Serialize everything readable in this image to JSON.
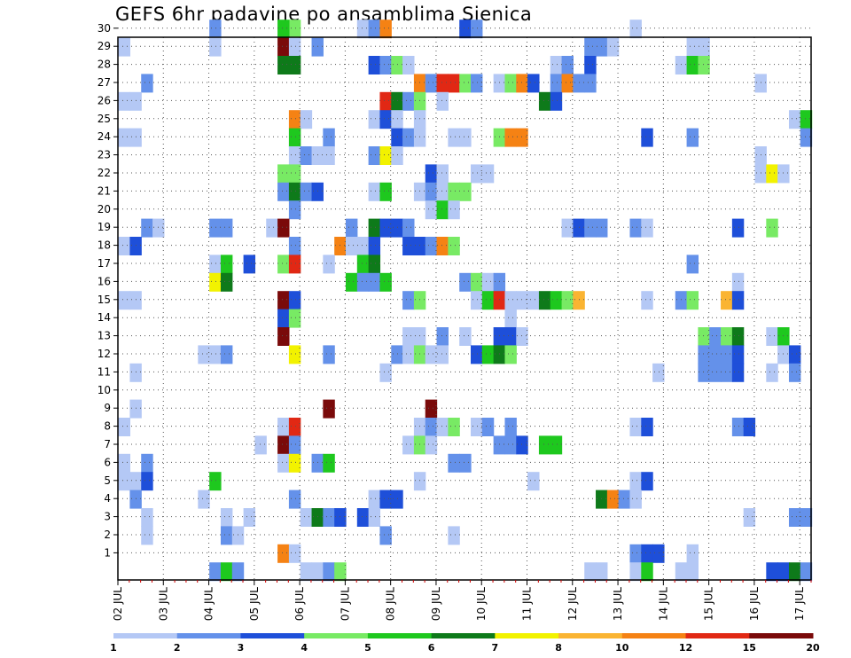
{
  "title": "GEFS 6hr padavine po ansamblima Sjenica",
  "chart_data": {
    "type": "heatmap",
    "title": "GEFS 6hr padavine po ansamblima Sjenica",
    "ylim": [
      0,
      30
    ],
    "yticks": [
      1,
      2,
      3,
      4,
      5,
      6,
      7,
      8,
      9,
      10,
      11,
      12,
      13,
      14,
      15,
      16,
      17,
      18,
      19,
      20,
      21,
      22,
      23,
      24,
      25,
      26,
      27,
      28,
      29,
      30
    ],
    "xlim": [
      0,
      61
    ],
    "xticks": [
      {
        "label": "02 JUL",
        "pos": 0
      },
      {
        "label": "03 JUL",
        "pos": 4
      },
      {
        "label": "04 JUL",
        "pos": 8
      },
      {
        "label": "05 JUL",
        "pos": 12
      },
      {
        "label": "06 JUL",
        "pos": 16
      },
      {
        "label": "07 JUL",
        "pos": 20
      },
      {
        "label": "08 JUL",
        "pos": 24
      },
      {
        "label": "09 JUL",
        "pos": 28
      },
      {
        "label": "10 JUL",
        "pos": 32
      },
      {
        "label": "11 JUL",
        "pos": 36
      },
      {
        "label": "12 JUL",
        "pos": 40
      },
      {
        "label": "13 JUL",
        "pos": 44
      },
      {
        "label": "14 JUL",
        "pos": 48
      },
      {
        "label": "15 JUL",
        "pos": 52
      },
      {
        "label": "16 JUL",
        "pos": 56
      },
      {
        "label": "17 JUL",
        "pos": 60
      }
    ],
    "grid": true,
    "colorbar": {
      "labels": [
        "1",
        "2",
        "3",
        "4",
        "5",
        "6",
        "7",
        "8",
        "10",
        "12",
        "15",
        "20"
      ],
      "colors": [
        "#b4c8f5",
        "#6491ea",
        "#1e4fd9",
        "#78ea64",
        "#1ec81e",
        "#0e7a1a",
        "#f2f200",
        "#fab432",
        "#f58214",
        "#e12814",
        "#7a0a0a"
      ]
    },
    "cells": [
      [
        8,
        30,
        1
      ],
      [
        15,
        30,
        3
      ],
      [
        14,
        30,
        4
      ],
      [
        21,
        30,
        0
      ],
      [
        22,
        30,
        1
      ],
      [
        23,
        30,
        8
      ],
      [
        30,
        30,
        2
      ],
      [
        31,
        30,
        1
      ],
      [
        45,
        30,
        0
      ],
      [
        0,
        29,
        0
      ],
      [
        8,
        29,
        0
      ],
      [
        14,
        29,
        10
      ],
      [
        15,
        29,
        0
      ],
      [
        17,
        29,
        1
      ],
      [
        41,
        29,
        1
      ],
      [
        42,
        29,
        1
      ],
      [
        43,
        29,
        0
      ],
      [
        50,
        29,
        0
      ],
      [
        51,
        29,
        0
      ],
      [
        14,
        28,
        5
      ],
      [
        15,
        28,
        5
      ],
      [
        22,
        28,
        2
      ],
      [
        23,
        28,
        1
      ],
      [
        24,
        28,
        3
      ],
      [
        25,
        28,
        0
      ],
      [
        38,
        28,
        0
      ],
      [
        39,
        28,
        1
      ],
      [
        41,
        28,
        2
      ],
      [
        49,
        28,
        0
      ],
      [
        50,
        28,
        4
      ],
      [
        51,
        28,
        3
      ],
      [
        2,
        27,
        1
      ],
      [
        26,
        27,
        8
      ],
      [
        27,
        27,
        1
      ],
      [
        28,
        27,
        9
      ],
      [
        29,
        27,
        9
      ],
      [
        30,
        27,
        3
      ],
      [
        31,
        27,
        1
      ],
      [
        33,
        27,
        0
      ],
      [
        34,
        27,
        3
      ],
      [
        35,
        27,
        8
      ],
      [
        36,
        27,
        2
      ],
      [
        38,
        27,
        1
      ],
      [
        39,
        27,
        8
      ],
      [
        40,
        27,
        1
      ],
      [
        41,
        27,
        1
      ],
      [
        56,
        27,
        0
      ],
      [
        0,
        26,
        0
      ],
      [
        1,
        26,
        0
      ],
      [
        23,
        26,
        9
      ],
      [
        24,
        26,
        5
      ],
      [
        25,
        26,
        1
      ],
      [
        26,
        26,
        3
      ],
      [
        28,
        26,
        0
      ],
      [
        37,
        26,
        5
      ],
      [
        38,
        26,
        2
      ],
      [
        15,
        25,
        8
      ],
      [
        16,
        25,
        0
      ],
      [
        22,
        25,
        0
      ],
      [
        23,
        25,
        2
      ],
      [
        24,
        25,
        0
      ],
      [
        26,
        25,
        0
      ],
      [
        59,
        25,
        0
      ],
      [
        60,
        25,
        4
      ],
      [
        0,
        24,
        0
      ],
      [
        1,
        24,
        0
      ],
      [
        15,
        24,
        4
      ],
      [
        18,
        24,
        1
      ],
      [
        24,
        24,
        2
      ],
      [
        25,
        24,
        1
      ],
      [
        26,
        24,
        0
      ],
      [
        29,
        24,
        0
      ],
      [
        30,
        24,
        0
      ],
      [
        33,
        24,
        3
      ],
      [
        34,
        24,
        8
      ],
      [
        35,
        24,
        8
      ],
      [
        46,
        24,
        2
      ],
      [
        50,
        24,
        1
      ],
      [
        60,
        24,
        1
      ],
      [
        15,
        23,
        0
      ],
      [
        16,
        23,
        1
      ],
      [
        17,
        23,
        0
      ],
      [
        18,
        23,
        0
      ],
      [
        22,
        23,
        1
      ],
      [
        23,
        23,
        6
      ],
      [
        24,
        23,
        0
      ],
      [
        56,
        23,
        0
      ],
      [
        14,
        22,
        3
      ],
      [
        15,
        22,
        3
      ],
      [
        27,
        22,
        2
      ],
      [
        28,
        22,
        0
      ],
      [
        31,
        22,
        0
      ],
      [
        32,
        22,
        0
      ],
      [
        56,
        22,
        0
      ],
      [
        57,
        22,
        6
      ],
      [
        58,
        22,
        0
      ],
      [
        14,
        21,
        1
      ],
      [
        15,
        21,
        5
      ],
      [
        16,
        21,
        1
      ],
      [
        17,
        21,
        2
      ],
      [
        22,
        21,
        0
      ],
      [
        23,
        21,
        4
      ],
      [
        26,
        21,
        0
      ],
      [
        27,
        21,
        1
      ],
      [
        28,
        21,
        0
      ],
      [
        29,
        21,
        3
      ],
      [
        30,
        21,
        3
      ],
      [
        15,
        20,
        1
      ],
      [
        27,
        20,
        0
      ],
      [
        28,
        20,
        4
      ],
      [
        29,
        20,
        0
      ],
      [
        2,
        19,
        1
      ],
      [
        3,
        19,
        0
      ],
      [
        8,
        19,
        1
      ],
      [
        9,
        19,
        1
      ],
      [
        13,
        19,
        0
      ],
      [
        14,
        19,
        10
      ],
      [
        20,
        19,
        1
      ],
      [
        22,
        19,
        5
      ],
      [
        23,
        19,
        2
      ],
      [
        24,
        19,
        2
      ],
      [
        25,
        19,
        1
      ],
      [
        39,
        19,
        0
      ],
      [
        40,
        19,
        2
      ],
      [
        41,
        19,
        1
      ],
      [
        42,
        19,
        1
      ],
      [
        45,
        19,
        1
      ],
      [
        46,
        19,
        0
      ],
      [
        54,
        19,
        2
      ],
      [
        57,
        19,
        3
      ],
      [
        0,
        18,
        0
      ],
      [
        1,
        18,
        2
      ],
      [
        15,
        18,
        1
      ],
      [
        19,
        18,
        8
      ],
      [
        20,
        18,
        0
      ],
      [
        21,
        18,
        0
      ],
      [
        22,
        18,
        2
      ],
      [
        25,
        18,
        2
      ],
      [
        26,
        18,
        2
      ],
      [
        27,
        18,
        1
      ],
      [
        28,
        18,
        8
      ],
      [
        29,
        18,
        3
      ],
      [
        8,
        17,
        0
      ],
      [
        9,
        17,
        4
      ],
      [
        11,
        17,
        2
      ],
      [
        14,
        17,
        3
      ],
      [
        15,
        17,
        9
      ],
      [
        18,
        17,
        0
      ],
      [
        21,
        17,
        4
      ],
      [
        22,
        17,
        5
      ],
      [
        50,
        17,
        1
      ],
      [
        8,
        16,
        6
      ],
      [
        9,
        16,
        5
      ],
      [
        20,
        16,
        4
      ],
      [
        21,
        16,
        1
      ],
      [
        22,
        16,
        1
      ],
      [
        23,
        16,
        4
      ],
      [
        30,
        16,
        1
      ],
      [
        31,
        16,
        3
      ],
      [
        32,
        16,
        0
      ],
      [
        33,
        16,
        1
      ],
      [
        54,
        16,
        0
      ],
      [
        0,
        15,
        0
      ],
      [
        1,
        15,
        0
      ],
      [
        14,
        15,
        10
      ],
      [
        15,
        15,
        2
      ],
      [
        25,
        15,
        1
      ],
      [
        26,
        15,
        3
      ],
      [
        31,
        15,
        0
      ],
      [
        32,
        15,
        4
      ],
      [
        33,
        15,
        9
      ],
      [
        34,
        15,
        0
      ],
      [
        35,
        15,
        0
      ],
      [
        36,
        15,
        0
      ],
      [
        37,
        15,
        5
      ],
      [
        38,
        15,
        4
      ],
      [
        39,
        15,
        3
      ],
      [
        40,
        15,
        7
      ],
      [
        46,
        15,
        0
      ],
      [
        49,
        15,
        1
      ],
      [
        50,
        15,
        3
      ],
      [
        53,
        15,
        7
      ],
      [
        54,
        15,
        2
      ],
      [
        14,
        14,
        2
      ],
      [
        15,
        14,
        3
      ],
      [
        34,
        14,
        0
      ],
      [
        14,
        13,
        10
      ],
      [
        25,
        13,
        0
      ],
      [
        26,
        13,
        0
      ],
      [
        28,
        13,
        1
      ],
      [
        30,
        13,
        0
      ],
      [
        33,
        13,
        2
      ],
      [
        34,
        13,
        2
      ],
      [
        35,
        13,
        0
      ],
      [
        51,
        13,
        3
      ],
      [
        52,
        13,
        1
      ],
      [
        53,
        13,
        3
      ],
      [
        54,
        13,
        5
      ],
      [
        57,
        13,
        0
      ],
      [
        58,
        13,
        4
      ],
      [
        7,
        12,
        0
      ],
      [
        8,
        12,
        0
      ],
      [
        9,
        12,
        1
      ],
      [
        15,
        12,
        6
      ],
      [
        18,
        12,
        1
      ],
      [
        24,
        12,
        1
      ],
      [
        25,
        12,
        0
      ],
      [
        26,
        12,
        3
      ],
      [
        27,
        12,
        0
      ],
      [
        28,
        12,
        0
      ],
      [
        31,
        12,
        2
      ],
      [
        32,
        12,
        4
      ],
      [
        33,
        12,
        5
      ],
      [
        34,
        12,
        3
      ],
      [
        51,
        12,
        1
      ],
      [
        52,
        12,
        1
      ],
      [
        53,
        12,
        1
      ],
      [
        54,
        12,
        2
      ],
      [
        58,
        12,
        0
      ],
      [
        59,
        12,
        2
      ],
      [
        1,
        11,
        0
      ],
      [
        23,
        11,
        0
      ],
      [
        47,
        11,
        0
      ],
      [
        51,
        11,
        1
      ],
      [
        52,
        11,
        1
      ],
      [
        53,
        11,
        1
      ],
      [
        54,
        11,
        2
      ],
      [
        57,
        11,
        0
      ],
      [
        59,
        11,
        1
      ],
      [
        1,
        9,
        0
      ],
      [
        18,
        9,
        10
      ],
      [
        27,
        9,
        10
      ],
      [
        0,
        8,
        0
      ],
      [
        14,
        8,
        0
      ],
      [
        15,
        8,
        9
      ],
      [
        26,
        8,
        0
      ],
      [
        27,
        8,
        1
      ],
      [
        28,
        8,
        0
      ],
      [
        29,
        8,
        3
      ],
      [
        31,
        8,
        0
      ],
      [
        32,
        8,
        1
      ],
      [
        34,
        8,
        1
      ],
      [
        45,
        8,
        0
      ],
      [
        46,
        8,
        2
      ],
      [
        54,
        8,
        1
      ],
      [
        55,
        8,
        2
      ],
      [
        12,
        7,
        0
      ],
      [
        14,
        7,
        10
      ],
      [
        15,
        7,
        1
      ],
      [
        25,
        7,
        0
      ],
      [
        26,
        7,
        3
      ],
      [
        27,
        7,
        0
      ],
      [
        33,
        7,
        1
      ],
      [
        34,
        7,
        1
      ],
      [
        35,
        7,
        2
      ],
      [
        37,
        7,
        4
      ],
      [
        38,
        7,
        4
      ],
      [
        0,
        6,
        0
      ],
      [
        2,
        6,
        1
      ],
      [
        14,
        6,
        0
      ],
      [
        15,
        6,
        6
      ],
      [
        17,
        6,
        1
      ],
      [
        18,
        6,
        4
      ],
      [
        29,
        6,
        1
      ],
      [
        30,
        6,
        1
      ],
      [
        0,
        5,
        0
      ],
      [
        1,
        5,
        0
      ],
      [
        2,
        5,
        2
      ],
      [
        8,
        5,
        4
      ],
      [
        26,
        5,
        0
      ],
      [
        36,
        5,
        0
      ],
      [
        45,
        5,
        0
      ],
      [
        46,
        5,
        2
      ],
      [
        1,
        4,
        1
      ],
      [
        7,
        4,
        0
      ],
      [
        15,
        4,
        1
      ],
      [
        22,
        4,
        0
      ],
      [
        23,
        4,
        2
      ],
      [
        24,
        4,
        2
      ],
      [
        42,
        4,
        5
      ],
      [
        43,
        4,
        8
      ],
      [
        44,
        4,
        1
      ],
      [
        45,
        4,
        0
      ],
      [
        2,
        3,
        0
      ],
      [
        9,
        3,
        0
      ],
      [
        11,
        3,
        0
      ],
      [
        16,
        3,
        0
      ],
      [
        17,
        3,
        5
      ],
      [
        18,
        3,
        1
      ],
      [
        19,
        3,
        2
      ],
      [
        21,
        3,
        2
      ],
      [
        22,
        3,
        0
      ],
      [
        55,
        3,
        0
      ],
      [
        59,
        3,
        1
      ],
      [
        60,
        3,
        1
      ],
      [
        2,
        2,
        0
      ],
      [
        9,
        2,
        1
      ],
      [
        10,
        2,
        0
      ],
      [
        23,
        2,
        1
      ],
      [
        29,
        2,
        0
      ],
      [
        14,
        1,
        8
      ],
      [
        15,
        1,
        0
      ],
      [
        45,
        1,
        1
      ],
      [
        46,
        1,
        2
      ],
      [
        47,
        1,
        2
      ],
      [
        50,
        1,
        0
      ],
      [
        8,
        0,
        1
      ],
      [
        9,
        0,
        4
      ],
      [
        10,
        0,
        1
      ],
      [
        16,
        0,
        0
      ],
      [
        17,
        0,
        0
      ],
      [
        18,
        0,
        1
      ],
      [
        19,
        0,
        3
      ],
      [
        41,
        0,
        0
      ],
      [
        42,
        0,
        0
      ],
      [
        45,
        0,
        0
      ],
      [
        46,
        0,
        4
      ],
      [
        49,
        0,
        0
      ],
      [
        50,
        0,
        0
      ],
      [
        57,
        0,
        2
      ],
      [
        58,
        0,
        2
      ],
      [
        59,
        0,
        5
      ],
      [
        60,
        0,
        1
      ]
    ]
  }
}
